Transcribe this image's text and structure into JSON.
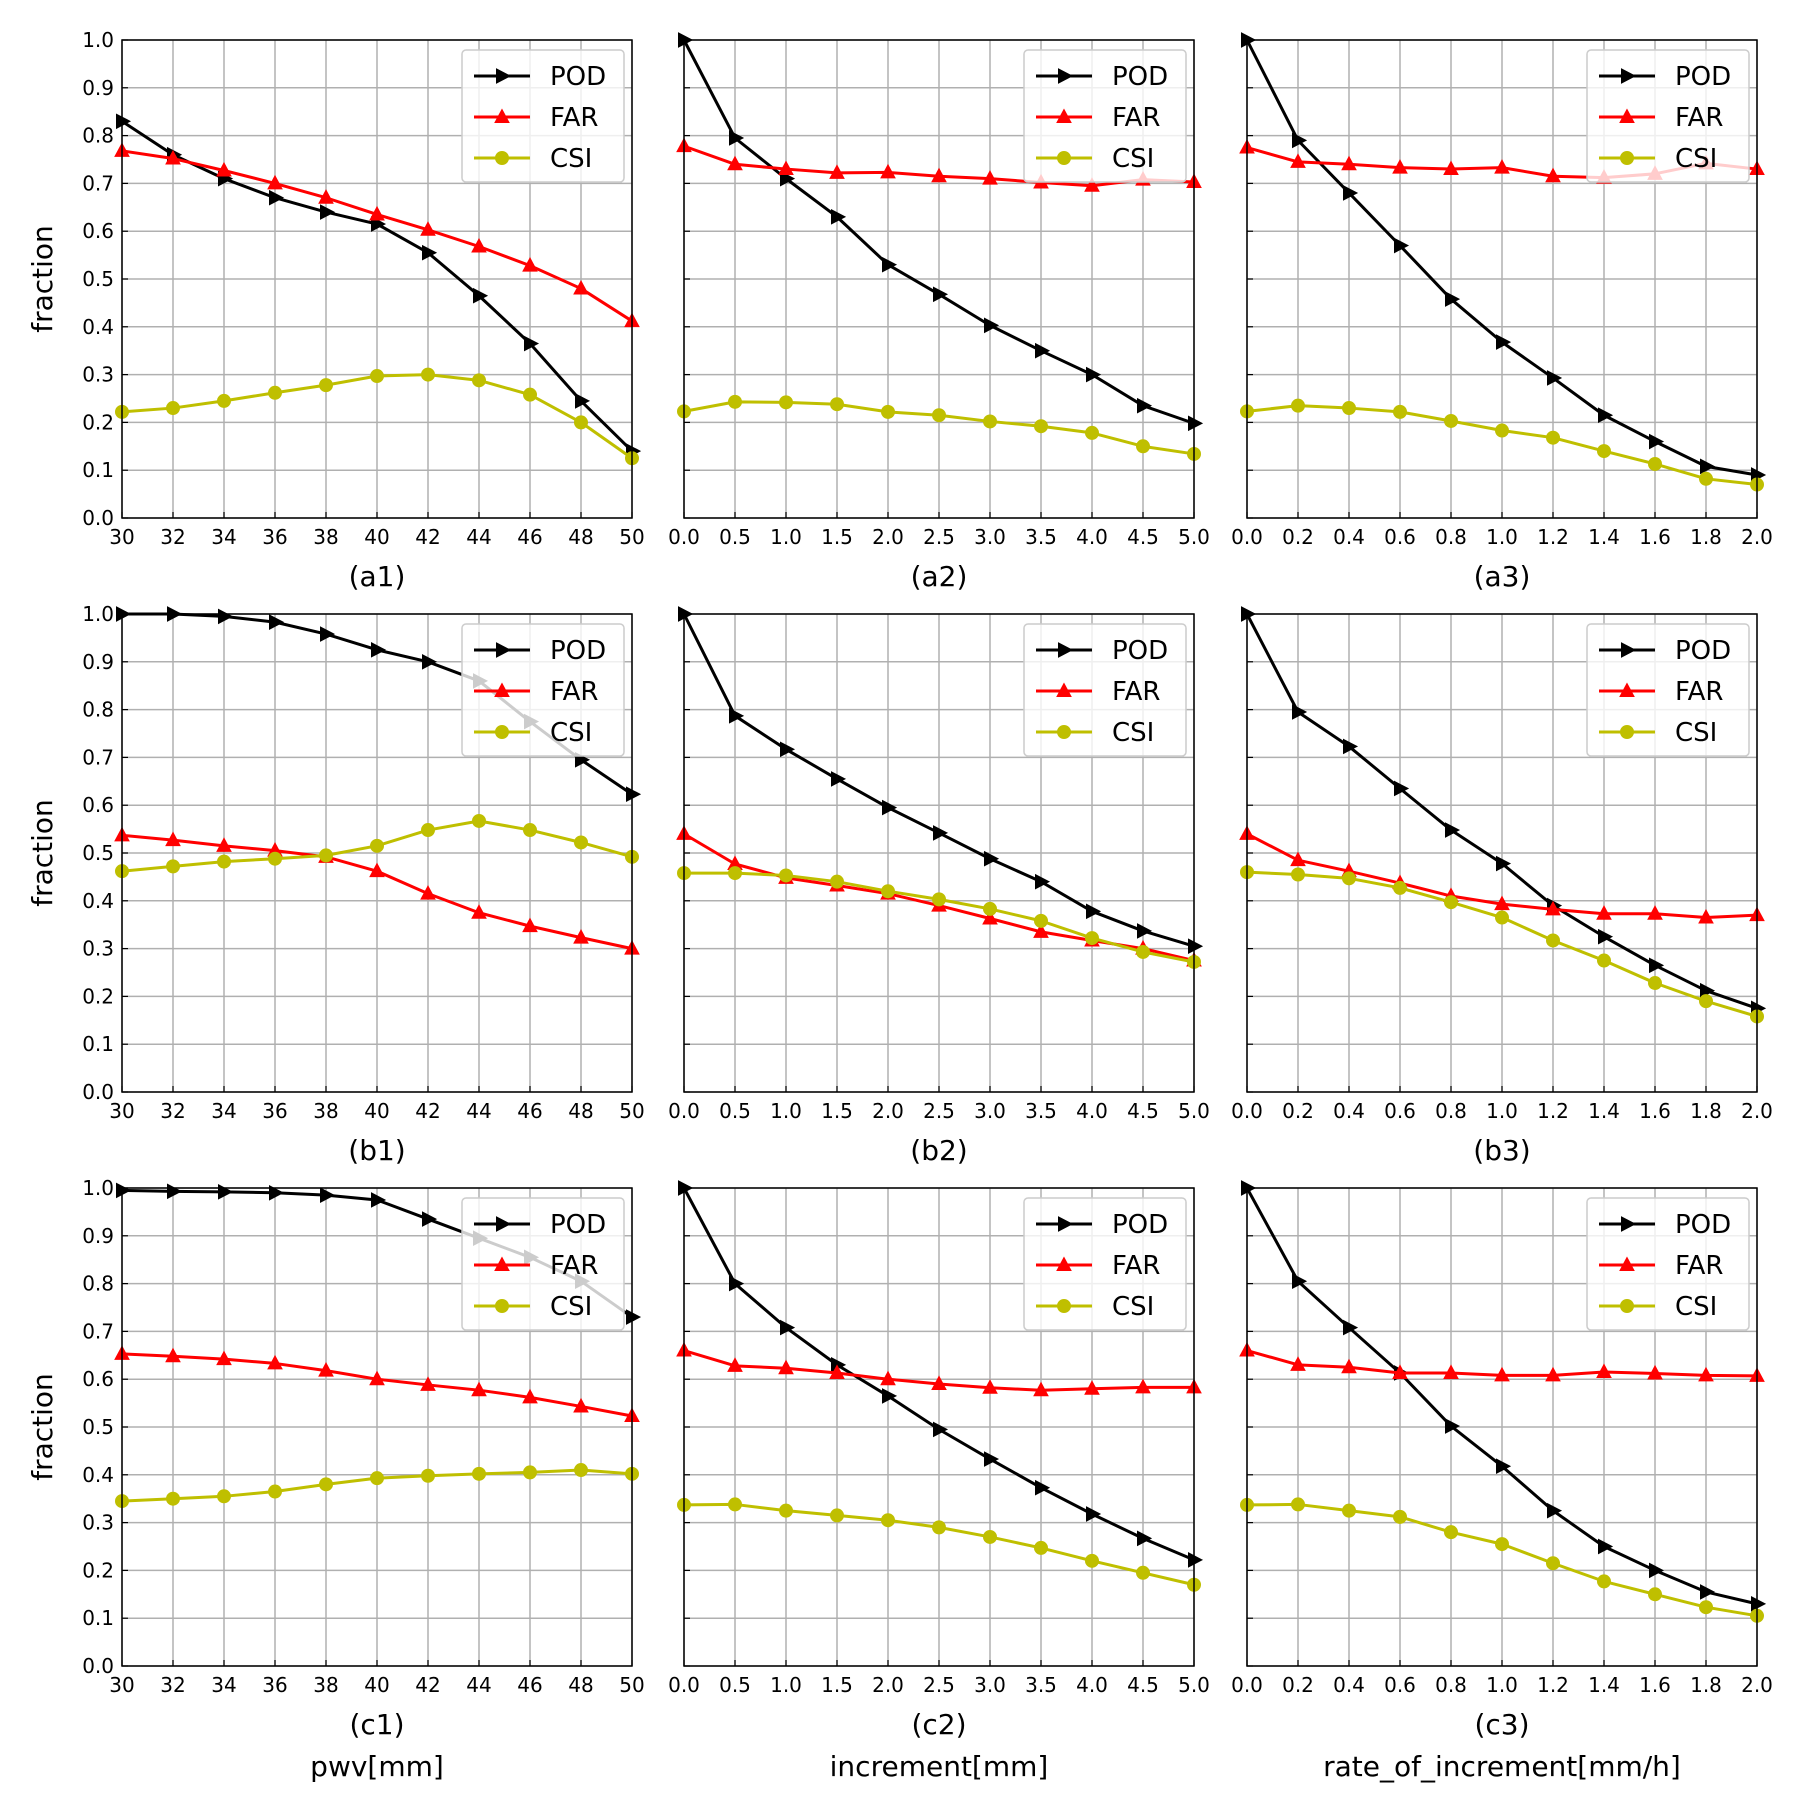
{
  "legend": [
    "POD",
    "FAR",
    "CSI"
  ],
  "series_colors": {
    "POD": "#000000",
    "FAR": "#ff0000",
    "CSI": "#bfbf00"
  },
  "series_markers": {
    "POD": "triangle-right",
    "FAR": "triangle-up",
    "CSI": "circle"
  },
  "ylabel": "fraction",
  "xlabels": [
    "pwv[mm]",
    "increment[mm]",
    "rate_of_increment[mm/h]"
  ],
  "chart_data": [
    {
      "type": "line",
      "label": "(a1)",
      "x": [
        30,
        32,
        34,
        36,
        38,
        40,
        42,
        44,
        46,
        48,
        50
      ],
      "xlim": [
        30,
        50
      ],
      "ylim": [
        0,
        1
      ],
      "grid": true,
      "x_ticks": [
        "30",
        "32",
        "34",
        "36",
        "38",
        "40",
        "42",
        "44",
        "46",
        "48",
        "50"
      ],
      "y_ticks": [
        "0.0",
        "0.1",
        "0.2",
        "0.3",
        "0.4",
        "0.5",
        "0.6",
        "0.7",
        "0.8",
        "0.9",
        "1.0"
      ],
      "legend_position": "top-right",
      "series": [
        {
          "name": "POD",
          "values": [
            0.83,
            0.76,
            0.71,
            0.67,
            0.64,
            0.615,
            0.555,
            0.465,
            0.365,
            0.245,
            0.14
          ]
        },
        {
          "name": "FAR",
          "values": [
            0.768,
            0.752,
            0.727,
            0.7,
            0.67,
            0.635,
            0.603,
            0.568,
            0.528,
            0.48,
            0.412
          ]
        },
        {
          "name": "CSI",
          "values": [
            0.222,
            0.23,
            0.245,
            0.262,
            0.278,
            0.297,
            0.3,
            0.288,
            0.258,
            0.2,
            0.125
          ]
        }
      ]
    },
    {
      "type": "line",
      "label": "(a2)",
      "x": [
        0,
        0.5,
        1,
        1.5,
        2,
        2.5,
        3,
        3.5,
        4,
        4.5,
        5
      ],
      "xlim": [
        0,
        5
      ],
      "ylim": [
        0,
        1
      ],
      "grid": true,
      "x_ticks": [
        "0.0",
        "0.5",
        "1.0",
        "1.5",
        "2.0",
        "2.5",
        "3.0",
        "3.5",
        "4.0",
        "4.5",
        "5.0"
      ],
      "legend_position": "top-right",
      "series": [
        {
          "name": "POD",
          "values": [
            1.0,
            0.795,
            0.71,
            0.63,
            0.53,
            0.468,
            0.403,
            0.35,
            0.3,
            0.235,
            0.198
          ]
        },
        {
          "name": "FAR",
          "values": [
            0.778,
            0.74,
            0.73,
            0.722,
            0.723,
            0.715,
            0.71,
            0.702,
            0.695,
            0.708,
            0.703
          ]
        },
        {
          "name": "CSI",
          "values": [
            0.223,
            0.243,
            0.242,
            0.238,
            0.222,
            0.215,
            0.202,
            0.192,
            0.178,
            0.15,
            0.134
          ]
        }
      ]
    },
    {
      "type": "line",
      "label": "(a3)",
      "x": [
        0,
        0.2,
        0.4,
        0.6,
        0.8,
        1.0,
        1.2,
        1.4,
        1.6,
        1.8,
        2.0
      ],
      "xlim": [
        0,
        2
      ],
      "ylim": [
        0,
        1
      ],
      "grid": true,
      "x_ticks": [
        "0.0",
        "0.2",
        "0.4",
        "0.6",
        "0.8",
        "1.0",
        "1.2",
        "1.4",
        "1.6",
        "1.8",
        "2.0"
      ],
      "legend_position": "top-right",
      "series": [
        {
          "name": "POD",
          "values": [
            1.0,
            0.79,
            0.68,
            0.57,
            0.458,
            0.368,
            0.293,
            0.215,
            0.16,
            0.108,
            0.09
          ]
        },
        {
          "name": "FAR",
          "values": [
            0.775,
            0.745,
            0.74,
            0.733,
            0.73,
            0.733,
            0.715,
            0.712,
            0.72,
            0.742,
            0.73
          ]
        },
        {
          "name": "CSI",
          "values": [
            0.223,
            0.235,
            0.23,
            0.222,
            0.203,
            0.183,
            0.168,
            0.14,
            0.113,
            0.082,
            0.07
          ]
        }
      ]
    },
    {
      "type": "line",
      "label": "(b1)",
      "x": [
        30,
        32,
        34,
        36,
        38,
        40,
        42,
        44,
        46,
        48,
        50
      ],
      "xlim": [
        30,
        50
      ],
      "ylim": [
        0,
        1
      ],
      "grid": true,
      "x_ticks": [
        "30",
        "32",
        "34",
        "36",
        "38",
        "40",
        "42",
        "44",
        "46",
        "48",
        "50"
      ],
      "y_ticks": [
        "0.0",
        "0.1",
        "0.2",
        "0.3",
        "0.4",
        "0.5",
        "0.6",
        "0.7",
        "0.8",
        "0.9",
        "1.0"
      ],
      "legend_position": "top-right",
      "series": [
        {
          "name": "POD",
          "values": [
            1.0,
            1.0,
            0.995,
            0.983,
            0.958,
            0.925,
            0.9,
            0.86,
            0.775,
            0.695,
            0.623
          ]
        },
        {
          "name": "FAR",
          "values": [
            0.537,
            0.527,
            0.515,
            0.505,
            0.492,
            0.462,
            0.415,
            0.375,
            0.347,
            0.323,
            0.3
          ]
        },
        {
          "name": "CSI",
          "values": [
            0.462,
            0.472,
            0.482,
            0.488,
            0.495,
            0.515,
            0.548,
            0.567,
            0.548,
            0.522,
            0.492
          ]
        }
      ]
    },
    {
      "type": "line",
      "label": "(b2)",
      "x": [
        0,
        0.5,
        1,
        1.5,
        2,
        2.5,
        3,
        3.5,
        4,
        4.5,
        5
      ],
      "xlim": [
        0,
        5
      ],
      "ylim": [
        0,
        1
      ],
      "grid": true,
      "x_ticks": [
        "0.0",
        "0.5",
        "1.0",
        "1.5",
        "2.0",
        "2.5",
        "3.0",
        "3.5",
        "4.0",
        "4.5",
        "5.0"
      ],
      "legend_position": "top-right",
      "series": [
        {
          "name": "POD",
          "values": [
            1.0,
            0.787,
            0.717,
            0.655,
            0.595,
            0.542,
            0.488,
            0.44,
            0.378,
            0.337,
            0.305
          ]
        },
        {
          "name": "FAR",
          "values": [
            0.54,
            0.477,
            0.448,
            0.432,
            0.415,
            0.39,
            0.363,
            0.335,
            0.317,
            0.3,
            0.275
          ]
        },
        {
          "name": "CSI",
          "values": [
            0.458,
            0.458,
            0.453,
            0.44,
            0.42,
            0.403,
            0.383,
            0.358,
            0.322,
            0.293,
            0.272
          ]
        }
      ]
    },
    {
      "type": "line",
      "label": "(b3)",
      "x": [
        0,
        0.2,
        0.4,
        0.6,
        0.8,
        1.0,
        1.2,
        1.4,
        1.6,
        1.8,
        2.0
      ],
      "xlim": [
        0,
        2
      ],
      "ylim": [
        0,
        1
      ],
      "grid": true,
      "x_ticks": [
        "0.0",
        "0.2",
        "0.4",
        "0.6",
        "0.8",
        "1.0",
        "1.2",
        "1.4",
        "1.6",
        "1.8",
        "2.0"
      ],
      "legend_position": "top-right",
      "series": [
        {
          "name": "POD",
          "values": [
            1.0,
            0.795,
            0.723,
            0.635,
            0.548,
            0.478,
            0.39,
            0.325,
            0.265,
            0.212,
            0.175
          ]
        },
        {
          "name": "FAR",
          "values": [
            0.54,
            0.485,
            0.462,
            0.437,
            0.41,
            0.393,
            0.382,
            0.373,
            0.373,
            0.365,
            0.37
          ]
        },
        {
          "name": "CSI",
          "values": [
            0.46,
            0.455,
            0.447,
            0.427,
            0.397,
            0.365,
            0.317,
            0.275,
            0.228,
            0.19,
            0.158
          ]
        }
      ]
    },
    {
      "type": "line",
      "label": "(c1)",
      "x": [
        30,
        32,
        34,
        36,
        38,
        40,
        42,
        44,
        46,
        48,
        50
      ],
      "xlim": [
        30,
        50
      ],
      "ylim": [
        0,
        1
      ],
      "grid": true,
      "x_ticks": [
        "30",
        "32",
        "34",
        "36",
        "38",
        "40",
        "42",
        "44",
        "46",
        "48",
        "50"
      ],
      "y_ticks": [
        "0.0",
        "0.1",
        "0.2",
        "0.3",
        "0.4",
        "0.5",
        "0.6",
        "0.7",
        "0.8",
        "0.9",
        "1.0"
      ],
      "legend_position": "top-right",
      "series": [
        {
          "name": "POD",
          "values": [
            0.995,
            0.993,
            0.992,
            0.99,
            0.985,
            0.975,
            0.935,
            0.895,
            0.855,
            0.805,
            0.73
          ]
        },
        {
          "name": "FAR",
          "values": [
            0.653,
            0.648,
            0.642,
            0.633,
            0.618,
            0.6,
            0.588,
            0.577,
            0.562,
            0.543,
            0.523
          ]
        },
        {
          "name": "CSI",
          "values": [
            0.345,
            0.35,
            0.355,
            0.365,
            0.38,
            0.393,
            0.398,
            0.402,
            0.405,
            0.41,
            0.402
          ]
        }
      ]
    },
    {
      "type": "line",
      "label": "(c2)",
      "x": [
        0,
        0.5,
        1,
        1.5,
        2,
        2.5,
        3,
        3.5,
        4,
        4.5,
        5
      ],
      "xlim": [
        0,
        5
      ],
      "ylim": [
        0,
        1
      ],
      "grid": true,
      "x_ticks": [
        "0.0",
        "0.5",
        "1.0",
        "1.5",
        "2.0",
        "2.5",
        "3.0",
        "3.5",
        "4.0",
        "4.5",
        "5.0"
      ],
      "legend_position": "top-right",
      "series": [
        {
          "name": "POD",
          "values": [
            1.0,
            0.8,
            0.708,
            0.63,
            0.565,
            0.495,
            0.433,
            0.373,
            0.318,
            0.267,
            0.222
          ]
        },
        {
          "name": "FAR",
          "values": [
            0.66,
            0.628,
            0.623,
            0.613,
            0.6,
            0.59,
            0.582,
            0.577,
            0.58,
            0.583,
            0.583
          ]
        },
        {
          "name": "CSI",
          "values": [
            0.337,
            0.338,
            0.325,
            0.315,
            0.305,
            0.29,
            0.27,
            0.247,
            0.22,
            0.195,
            0.17
          ]
        }
      ]
    },
    {
      "type": "line",
      "label": "(c3)",
      "x": [
        0,
        0.2,
        0.4,
        0.6,
        0.8,
        1.0,
        1.2,
        1.4,
        1.6,
        1.8,
        2.0
      ],
      "xlim": [
        0,
        2
      ],
      "ylim": [
        0,
        1
      ],
      "grid": true,
      "x_ticks": [
        "0.0",
        "0.2",
        "0.4",
        "0.6",
        "0.8",
        "1.0",
        "1.2",
        "1.4",
        "1.6",
        "1.8",
        "2.0"
      ],
      "legend_position": "top-right",
      "series": [
        {
          "name": "POD",
          "values": [
            1.0,
            0.805,
            0.708,
            0.613,
            0.502,
            0.418,
            0.325,
            0.25,
            0.2,
            0.155,
            0.13
          ]
        },
        {
          "name": "FAR",
          "values": [
            0.66,
            0.63,
            0.625,
            0.613,
            0.613,
            0.608,
            0.608,
            0.615,
            0.612,
            0.608,
            0.607
          ]
        },
        {
          "name": "CSI",
          "values": [
            0.337,
            0.338,
            0.325,
            0.312,
            0.28,
            0.255,
            0.215,
            0.177,
            0.15,
            0.123,
            0.105
          ]
        }
      ]
    }
  ]
}
